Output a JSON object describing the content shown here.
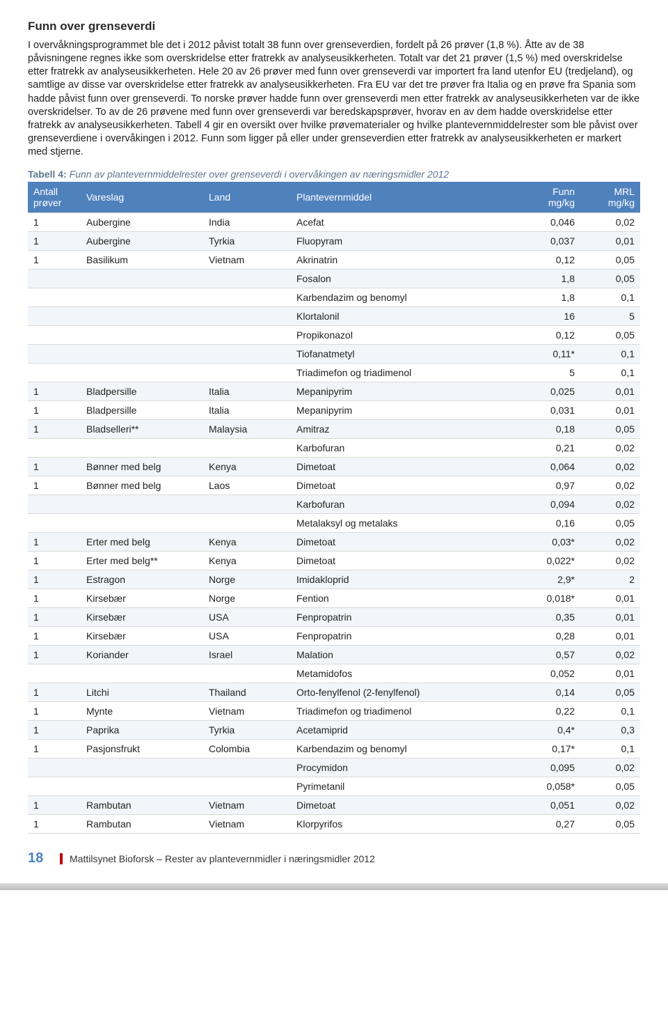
{
  "section": {
    "title": "Funn over grenseverdi",
    "paragraph": "I overvåkningsprogrammet ble det i 2012 påvist totalt 38 funn over grenseverdien, fordelt på 26 prøver (1,8 %). Åtte av de 38 påvisningene regnes ikke som overskridelse etter fratrekk av analyseusikkerheten. Totalt var det 21 prøver (1,5 %) med overskridelse etter fratrekk av analyseusikkerheten. Hele 20 av 26 prøver med funn over grenseverdi var importert fra land utenfor EU (tredjeland), og samtlige av disse var overskridelse etter fratrekk av analyseusikkerheten. Fra EU var det tre prøver fra Italia og en prøve fra Spania som hadde påvist funn over grenseverdi. To norske prøver hadde funn over grenseverdi men etter fratrekk av analyseusikkerheten var de ikke overskridelser. To av de 26 prøvene med funn over grenseverdi var beredskapsprøver, hvorav en av dem hadde overskridelse etter fratrekk av analyseusikkerheten. Tabell 4 gir en oversikt over hvilke prøvematerialer og hvilke plantevernmiddelrester som ble påvist over grenseverdiene i overvåkingen i 2012. Funn som ligger på eller under grenseverdien etter fratrekk av analyseusikkerheten er markert med stjerne."
  },
  "table": {
    "caption_label": "Tabell 4:",
    "caption_text": "Funn av plantevernmiddelrester over grenseverdi i overvåkingen av næringsmidler 2012",
    "header": {
      "col0": "Antall prøver",
      "col1": "Vareslag",
      "col2": "Land",
      "col3": "Plantevernmiddel",
      "col4_top": "Funn",
      "col4_bot": "mg/kg",
      "col5_top": "MRL",
      "col5_bot": "mg/kg"
    },
    "header_bg": "#4f81bd",
    "alt_row_bg": "#f2f5f9",
    "border_color": "#d9d9d9",
    "rows": [
      {
        "a": "1",
        "v": "Aubergine",
        "l": "India",
        "p": "Acefat",
        "f": "0,046",
        "m": "0,02",
        "alt": false
      },
      {
        "a": "1",
        "v": "Aubergine",
        "l": "Tyrkia",
        "p": "Fluopyram",
        "f": "0,037",
        "m": "0,01",
        "alt": true
      },
      {
        "a": "1",
        "v": "Basilikum",
        "l": "Vietnam",
        "p": "Akrinatrin",
        "f": "0,12",
        "m": "0,05",
        "alt": false
      },
      {
        "a": "",
        "v": "",
        "l": "",
        "p": "Fosalon",
        "f": "1,8",
        "m": "0,05",
        "alt": true
      },
      {
        "a": "",
        "v": "",
        "l": "",
        "p": "Karbendazim og benomyl",
        "f": "1,8",
        "m": "0,1",
        "alt": false
      },
      {
        "a": "",
        "v": "",
        "l": "",
        "p": "Klortalonil",
        "f": "16",
        "m": "5",
        "alt": true
      },
      {
        "a": "",
        "v": "",
        "l": "",
        "p": "Propikonazol",
        "f": "0,12",
        "m": "0,05",
        "alt": false
      },
      {
        "a": "",
        "v": "",
        "l": "",
        "p": "Tiofanatmetyl",
        "f": "0,11*",
        "m": "0,1",
        "alt": true
      },
      {
        "a": "",
        "v": "",
        "l": "",
        "p": "Triadimefon og triadimenol",
        "f": "5",
        "m": "0,1",
        "alt": false
      },
      {
        "a": "1",
        "v": "Bladpersille",
        "l": "Italia",
        "p": "Mepanipyrim",
        "f": "0,025",
        "m": "0,01",
        "alt": true
      },
      {
        "a": "1",
        "v": "Bladpersille",
        "l": "Italia",
        "p": "Mepanipyrim",
        "f": "0,031",
        "m": "0,01",
        "alt": false
      },
      {
        "a": "1",
        "v": "Bladselleri**",
        "l": "Malaysia",
        "p": "Amitraz",
        "f": "0,18",
        "m": "0,05",
        "alt": true
      },
      {
        "a": "",
        "v": "",
        "l": "",
        "p": "Karbofuran",
        "f": "0,21",
        "m": "0,02",
        "alt": false
      },
      {
        "a": "1",
        "v": "Bønner med belg",
        "l": "Kenya",
        "p": "Dimetoat",
        "f": "0,064",
        "m": "0,02",
        "alt": true
      },
      {
        "a": "1",
        "v": "Bønner med belg",
        "l": "Laos",
        "p": "Dimetoat",
        "f": "0,97",
        "m": "0,02",
        "alt": false
      },
      {
        "a": "",
        "v": "",
        "l": "",
        "p": "Karbofuran",
        "f": "0,094",
        "m": "0,02",
        "alt": true
      },
      {
        "a": "",
        "v": "",
        "l": "",
        "p": "Metalaksyl og metalaks",
        "f": "0,16",
        "m": "0,05",
        "alt": false
      },
      {
        "a": "1",
        "v": "Erter med belg",
        "l": "Kenya",
        "p": "Dimetoat",
        "f": "0,03*",
        "m": "0,02",
        "alt": true
      },
      {
        "a": "1",
        "v": "Erter med belg**",
        "l": "Kenya",
        "p": "Dimetoat",
        "f": "0,022*",
        "m": "0,02",
        "alt": false
      },
      {
        "a": "1",
        "v": "Estragon",
        "l": "Norge",
        "p": "Imidakloprid",
        "f": "2,9*",
        "m": "2",
        "alt": true
      },
      {
        "a": "1",
        "v": "Kirsebær",
        "l": "Norge",
        "p": "Fention",
        "f": "0,018*",
        "m": "0,01",
        "alt": false
      },
      {
        "a": "1",
        "v": "Kirsebær",
        "l": "USA",
        "p": "Fenpropatrin",
        "f": "0,35",
        "m": "0,01",
        "alt": true
      },
      {
        "a": "1",
        "v": "Kirsebær",
        "l": "USA",
        "p": "Fenpropatrin",
        "f": "0,28",
        "m": "0,01",
        "alt": false
      },
      {
        "a": "1",
        "v": "Koriander",
        "l": "Israel",
        "p": "Malation",
        "f": "0,57",
        "m": "0,02",
        "alt": true
      },
      {
        "a": "",
        "v": "",
        "l": "",
        "p": "Metamidofos",
        "f": "0,052",
        "m": "0,01",
        "alt": false
      },
      {
        "a": "1",
        "v": "Litchi",
        "l": "Thailand",
        "p": "Orto-fenylfenol (2-fenylfenol)",
        "f": "0,14",
        "m": "0,05",
        "alt": true
      },
      {
        "a": "1",
        "v": "Mynte",
        "l": "Vietnam",
        "p": "Triadimefon og triadimenol",
        "f": "0,22",
        "m": "0,1",
        "alt": false
      },
      {
        "a": "1",
        "v": "Paprika",
        "l": "Tyrkia",
        "p": "Acetamiprid",
        "f": "0,4*",
        "m": "0,3",
        "alt": true
      },
      {
        "a": "1",
        "v": "Pasjonsfrukt",
        "l": "Colombia",
        "p": "Karbendazim og benomyl",
        "f": "0,17*",
        "m": "0,1",
        "alt": false
      },
      {
        "a": "",
        "v": "",
        "l": "",
        "p": "Procymidon",
        "f": "0,095",
        "m": "0,02",
        "alt": true
      },
      {
        "a": "",
        "v": "",
        "l": "",
        "p": "Pyrimetanil",
        "f": "0,058*",
        "m": "0,05",
        "alt": false
      },
      {
        "a": "1",
        "v": "Rambutan",
        "l": "Vietnam",
        "p": "Dimetoat",
        "f": "0,051",
        "m": "0,02",
        "alt": true
      },
      {
        "a": "1",
        "v": "Rambutan",
        "l": "Vietnam",
        "p": "Klorpyrifos",
        "f": "0,27",
        "m": "0,05",
        "alt": false
      }
    ]
  },
  "footer": {
    "page_number": "18",
    "text": "Mattilsynet Bioforsk – Rester av plantevernmidler i næringsmidler 2012"
  }
}
